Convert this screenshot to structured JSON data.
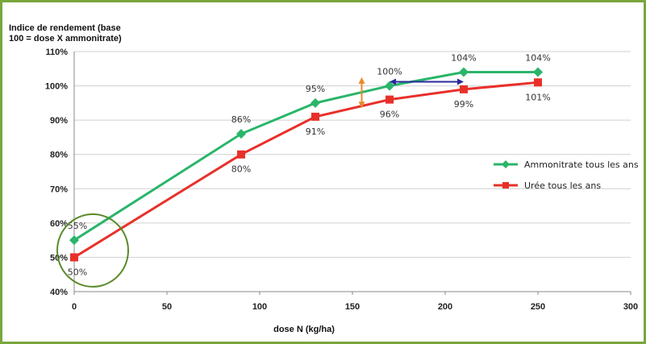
{
  "chart_data": {
    "type": "line",
    "ylabel_line1": "Indice de rendement (base",
    "ylabel_line2": "100 = dose X ammonitrate)",
    "xlabel": "dose N (kg/ha)",
    "xlim": [
      0,
      300
    ],
    "ylim": [
      40,
      110
    ],
    "x_ticks": [
      "0",
      "50",
      "100",
      "150",
      "200",
      "250",
      "300"
    ],
    "y_ticks": [
      "40%",
      "50%",
      "60%",
      "70%",
      "80%",
      "90%",
      "100%",
      "110%"
    ],
    "grid": true,
    "legend_position": "right",
    "series": [
      {
        "name": "Ammonitrate tous les ans",
        "color": "#2ab56a",
        "marker": "diamond",
        "x": [
          0,
          90,
          130,
          170,
          210,
          250
        ],
        "y": [
          55,
          86,
          95,
          100,
          104,
          104
        ],
        "labels": [
          "55%",
          "86%",
          "95%",
          "100%",
          "104%",
          "104%"
        ]
      },
      {
        "name": "Urée tous les ans",
        "color": "#e8302a",
        "marker": "square",
        "x": [
          0,
          90,
          130,
          170,
          210,
          250
        ],
        "y": [
          50,
          80,
          91,
          96,
          99,
          101
        ],
        "labels": [
          "50%",
          "80%",
          "91%",
          "96%",
          "99%",
          "101%"
        ]
      }
    ],
    "annotations": [
      {
        "type": "vertical-double-arrow",
        "color": "#e88a2a",
        "x": 155,
        "y_from": 93.5,
        "y_to": 102.5
      },
      {
        "type": "horizontal-double-arrow",
        "color": "#2a2a9a",
        "y": 101.2,
        "x_from": 170,
        "x_to": 210
      },
      {
        "type": "circle",
        "color": "#5a8a2a",
        "x": 10,
        "y": 52
      }
    ]
  }
}
